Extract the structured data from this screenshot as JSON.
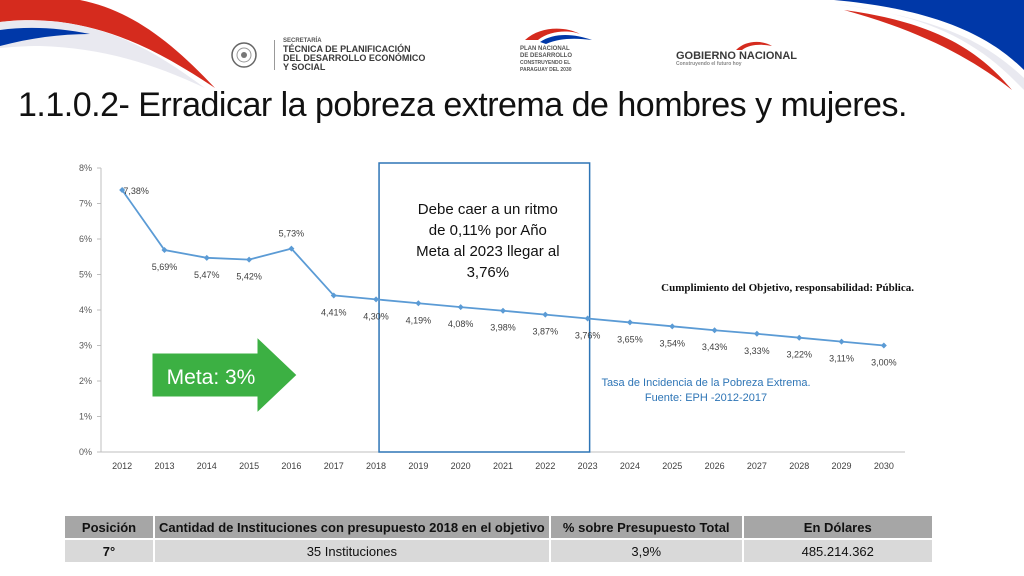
{
  "header": {
    "logo_left": {
      "line1": "SECRETARÍA",
      "line2": "TÉCNICA DE PLANIFICACIÓN",
      "line3": "DEL DESARROLLO ECONÓMICO",
      "line4": "Y SOCIAL"
    },
    "logo_center": {
      "line1": "PLAN NACIONAL",
      "line2": "DE DESARROLLO",
      "line3": "CONSTRUYENDO EL",
      "line4": "PARAGUAY DEL 2030"
    },
    "logo_right": {
      "name": "GOBIERNO NACIONAL",
      "tagline": "Construyendo el futuro hoy"
    }
  },
  "title": "1.1.0.2- Erradicar la pobreza extrema de hombres y mujeres.",
  "chart_data": {
    "type": "line",
    "x": [
      "2012",
      "2013",
      "2014",
      "2015",
      "2016",
      "2017",
      "2018",
      "2019",
      "2020",
      "2021",
      "2022",
      "2023",
      "2024",
      "2025",
      "2026",
      "2027",
      "2028",
      "2029",
      "2030"
    ],
    "series": [
      {
        "values": [
          7.38,
          5.69,
          5.47,
          5.42,
          5.73,
          4.41,
          4.3,
          4.19,
          4.08,
          3.98,
          3.87,
          3.76,
          3.65,
          3.54,
          3.43,
          3.33,
          3.22,
          3.11,
          3.0
        ]
      }
    ],
    "data_labels": [
      "7,38%",
      "5,69%",
      "5,47%",
      "5,42%",
      "5,73%",
      "4,41%",
      "4,30%",
      "4,19%",
      "4,08%",
      "3,98%",
      "3,87%",
      "3,76%",
      "3,65%",
      "3,54%",
      "3,43%",
      "3,33%",
      "3,22%",
      "3,11%",
      "3,00%"
    ],
    "y_ticks": [
      "0%",
      "1%",
      "2%",
      "3%",
      "4%",
      "5%",
      "6%",
      "7%",
      "8%"
    ],
    "ylim": [
      0,
      8
    ],
    "line_color": "#5b9bd5",
    "highlight_box": {
      "from_year": "2018",
      "to_year": "2023"
    },
    "box_text": [
      "Debe caer a un ritmo",
      "de 0,11% por Año",
      "Meta al 2023 llegar al",
      "3,76%"
    ],
    "objective_text": "Cumplimiento del Objetivo, responsabilidad: Pública.",
    "source_lines": [
      "Tasa de Incidencia de la Pobreza Extrema.",
      "Fuente: EPH -2012-2017"
    ],
    "meta_arrow": {
      "label": "Meta: 3%",
      "color": "#3cb043"
    }
  },
  "table": {
    "headers": [
      "Posición",
      "Cantidad de Instituciones con presupuesto 2018 en el objetivo",
      "% sobre Presupuesto Total",
      "En Dólares"
    ],
    "row": [
      "7°",
      "35 Instituciones",
      "3,9%",
      "485.214.362"
    ]
  },
  "colors": {
    "flag_red": "#d52b1e",
    "flag_blue": "#0038a8",
    "source_text": "#2e75b6",
    "table_header": "#a6a6a6",
    "table_cell": "#d9d9d9"
  }
}
